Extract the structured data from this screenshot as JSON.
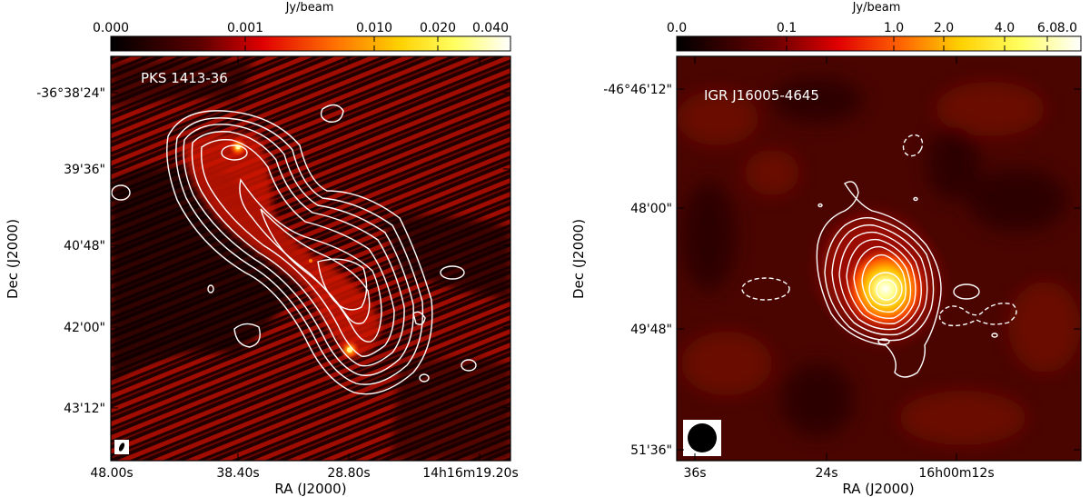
{
  "panels": [
    {
      "id": "left",
      "source_label": "PKS 1413-36",
      "colorbar": {
        "unit": "Jy/beam",
        "ticks": [
          "0.000",
          "0.001",
          "0.010",
          "0.020",
          "0.040"
        ]
      },
      "ylabel": "Dec (J2000)",
      "xlabel": "RA (J2000)",
      "yticks": [
        "-36°38'24\"",
        "39'36\"",
        "40'48\"",
        "42'00\"",
        "43'12\""
      ],
      "xticks": [
        "48.00s",
        "38.40s",
        "28.80s",
        "14h16m19.20s"
      ],
      "colors": {
        "background": "#1a0000",
        "emission": "#c81000",
        "peak": "#ffff80",
        "contour": "#ffffff"
      }
    },
    {
      "id": "right",
      "source_label": "IGR J16005-4645",
      "colorbar": {
        "unit": "Jy/beam",
        "ticks": [
          "0.0",
          "0.1",
          "1.0",
          "2.0",
          "4.0",
          "6.0",
          "8.0"
        ]
      },
      "ylabel": "Dec (J2000)",
      "xlabel": "RA (J2000)",
      "yticks": [
        "-46°46'12\"",
        "48'00\"",
        "49'48\"",
        "51'36\""
      ],
      "xticks": [
        "36s",
        "24s",
        "16h00m12s"
      ],
      "colors": {
        "background": "#3a0400",
        "emission": "#6e0c00",
        "peak": "#ffffe0",
        "contour": "#ffffff"
      }
    }
  ]
}
